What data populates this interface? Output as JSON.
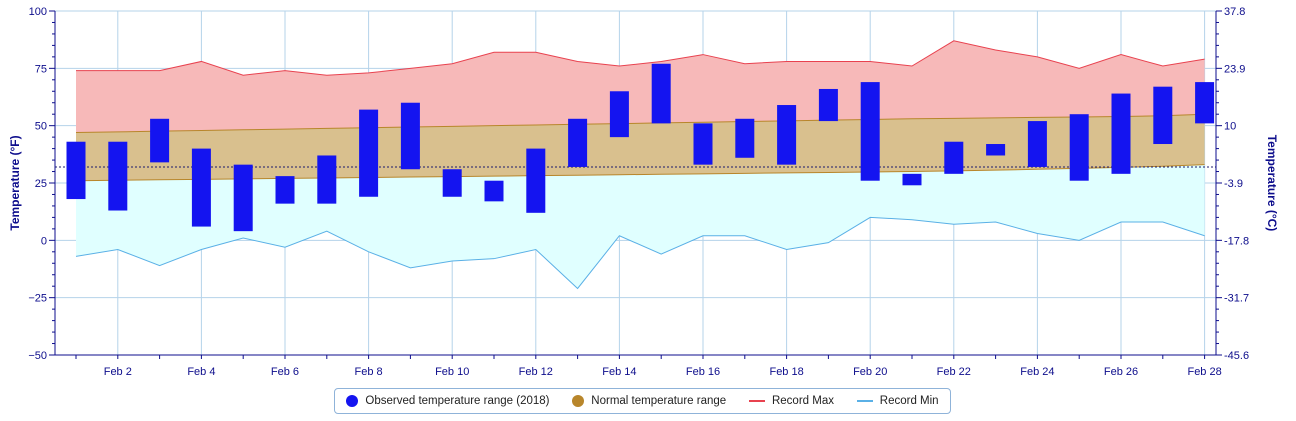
{
  "chart_data": {
    "type": "bar",
    "x": [
      "Feb 1",
      "Feb 2",
      "Feb 3",
      "Feb 4",
      "Feb 5",
      "Feb 6",
      "Feb 7",
      "Feb 8",
      "Feb 9",
      "Feb 10",
      "Feb 11",
      "Feb 12",
      "Feb 13",
      "Feb 14",
      "Feb 15",
      "Feb 16",
      "Feb 17",
      "Feb 18",
      "Feb 19",
      "Feb 20",
      "Feb 21",
      "Feb 22",
      "Feb 23",
      "Feb 24",
      "Feb 25",
      "Feb 26",
      "Feb 27",
      "Feb 28"
    ],
    "x_ticks": [
      "Feb 2",
      "Feb 4",
      "Feb 6",
      "Feb 8",
      "Feb 10",
      "Feb 12",
      "Feb 14",
      "Feb 16",
      "Feb 18",
      "Feb 20",
      "Feb 22",
      "Feb 24",
      "Feb 26",
      "Feb 28"
    ],
    "ylim": [
      -50,
      100
    ],
    "y_ticks": [
      100,
      75,
      50,
      25,
      0,
      -25,
      -50
    ],
    "y2_ticks": [
      "37.8",
      "23.9",
      "10",
      "-3.9",
      "-17.8",
      "-31.7",
      "-45.6"
    ],
    "ylabel": "Temperature (°F)",
    "y2label": "Temperature (°C)",
    "freezing_line": 32,
    "grid": true,
    "legend_position": "bottom",
    "series": [
      {
        "name": "Observed temperature range (2018)",
        "kind": "range-bar",
        "color": "#1414f0",
        "low": [
          18,
          13,
          34,
          6,
          4,
          16,
          16,
          19,
          31,
          19,
          17,
          12,
          32,
          45,
          51,
          33,
          36,
          33,
          52,
          26,
          24,
          29,
          37,
          32,
          26,
          29,
          42,
          51
        ],
        "high": [
          43,
          43,
          53,
          40,
          33,
          28,
          37,
          57,
          60,
          31,
          26,
          40,
          53,
          65,
          77,
          51,
          53,
          59,
          66,
          69,
          29,
          43,
          42,
          52,
          55,
          64,
          67,
          69
        ]
      },
      {
        "name": "Normal temperature range",
        "kind": "area-range",
        "color": "#b8862b",
        "low": [
          26,
          26.2,
          26.4,
          26.6,
          26.8,
          27,
          27.2,
          27.4,
          27.6,
          27.8,
          28,
          28.2,
          28.4,
          28.6,
          28.8,
          29,
          29.2,
          29.4,
          29.6,
          29.8,
          30,
          30.3,
          30.6,
          31,
          31.4,
          31.8,
          32.3,
          33
        ],
        "high": [
          47,
          47.3,
          47.6,
          47.9,
          48.2,
          48.5,
          48.8,
          49.1,
          49.4,
          49.7,
          50,
          50.3,
          50.6,
          50.9,
          51.2,
          51.5,
          51.8,
          52.1,
          52.4,
          52.7,
          53,
          53.2,
          53.4,
          53.6,
          53.8,
          54,
          54.3,
          55
        ]
      },
      {
        "name": "Record Max",
        "kind": "line",
        "color": "#e8424f",
        "values": [
          74,
          74,
          74,
          78,
          72,
          74,
          72,
          73,
          75,
          77,
          82,
          82,
          78,
          76,
          78,
          81,
          77,
          78,
          78,
          78,
          76,
          87,
          83,
          80,
          75,
          81,
          76,
          79
        ]
      },
      {
        "name": "Record Min",
        "kind": "line",
        "color": "#5ab0e6",
        "values": [
          -7,
          -4,
          -11,
          -4,
          1,
          -3,
          4,
          -5,
          -12,
          -9,
          -8,
          -4,
          -21,
          2,
          -6,
          2,
          2,
          -4,
          -1,
          10,
          9,
          7,
          8,
          3,
          0,
          8,
          8,
          2
        ]
      }
    ]
  },
  "legend": [
    {
      "label": "Observed temperature range (2018)",
      "color": "#1414f0",
      "marker": "dot"
    },
    {
      "label": "Normal temperature range",
      "color": "#b8862b",
      "marker": "dot"
    },
    {
      "label": "Record Max",
      "color": "#e8424f",
      "marker": "line"
    },
    {
      "label": "Record Min",
      "color": "#5ab0e6",
      "marker": "line"
    }
  ],
  "colors": {
    "record_max_fill": "#f7b9b9",
    "normal_fill": "#d9c08e",
    "record_min_fill": "#e0ffff",
    "grid": "#b5d3ea",
    "axis": "#0d0d8c"
  }
}
